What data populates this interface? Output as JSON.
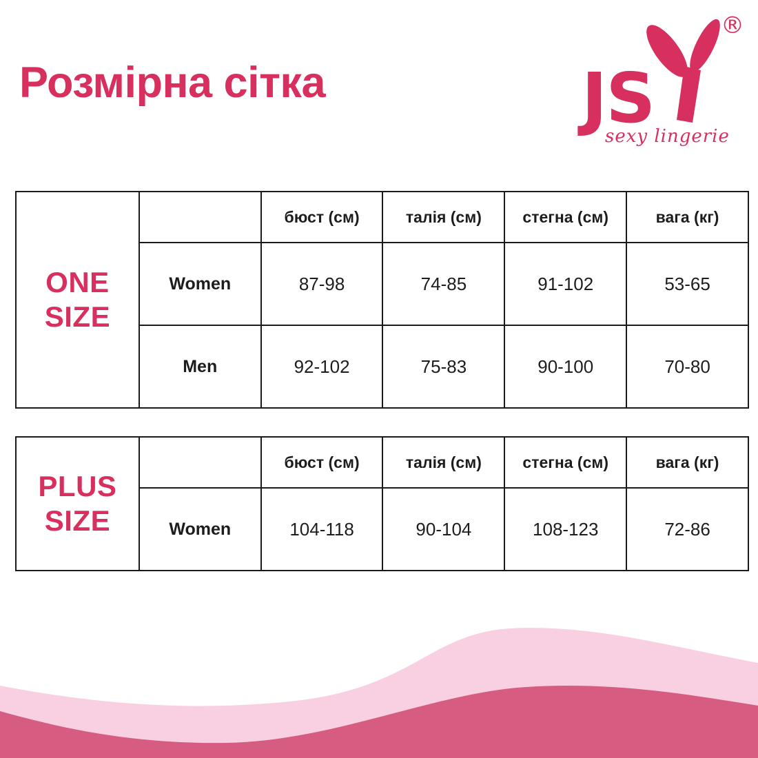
{
  "page": {
    "title": "Розмірна сітка"
  },
  "brand": {
    "letters": "JS",
    "tagline": "sexy lingerie",
    "registered": "®"
  },
  "colors": {
    "accent": "#d8305e",
    "text": "#1d1d1f",
    "border": "#1a1a1a",
    "wave_light": "#f9d0e1",
    "wave_dark": "#d75c82"
  },
  "tables": [
    {
      "size_label": "ONE SIZE",
      "size_label_lines": [
        "ONE",
        "SIZE"
      ],
      "columns": [
        "бюст (см)",
        "талія (см)",
        "стегна (см)",
        "вага (кг)"
      ],
      "rows": [
        {
          "label": "Women",
          "values": [
            "87-98",
            "74-85",
            "91-102",
            "53-65"
          ]
        },
        {
          "label": "Men",
          "values": [
            "92-102",
            "75-83",
            "90-100",
            "70-80"
          ]
        }
      ]
    },
    {
      "size_label": "PLUS SIZE",
      "size_label_lines": [
        "PLUS",
        "SIZE"
      ],
      "columns": [
        "бюст (см)",
        "талія (см)",
        "стегна (см)",
        "вага (кг)"
      ],
      "rows": [
        {
          "label": "Women",
          "values": [
            "104-118",
            "90-104",
            "108-123",
            "72-86"
          ]
        }
      ]
    }
  ]
}
